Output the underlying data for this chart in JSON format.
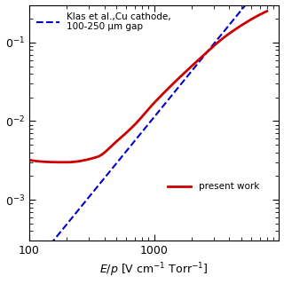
{
  "title": "",
  "xlabel": "$E/p$ [V cm$^{-1}$ Torr$^{-1}$]",
  "ylabel": "",
  "xlim": [
    100,
    10000
  ],
  "ylim": [
    0.0003,
    0.3
  ],
  "yticks": [
    0.001,
    0.01,
    0.1
  ],
  "xticks": [
    100,
    1000
  ],
  "red_color": "#cc0000",
  "blue_color": "#0000cc",
  "legend_klas": "Klas et al.,Cu cathode,\n100-250 μm gap",
  "legend_present": "present work",
  "background_color": "#ffffff",
  "red_anchor_x": [
    100,
    200,
    350,
    500,
    700,
    1000,
    2000,
    4000,
    8000
  ],
  "red_anchor_y": [
    0.0032,
    0.003,
    0.0035,
    0.0055,
    0.009,
    0.017,
    0.05,
    0.13,
    0.25
  ],
  "blue_logA": -7.8,
  "blue_n": 1.95,
  "blue_xstart": 148,
  "blue_xend": 8000
}
